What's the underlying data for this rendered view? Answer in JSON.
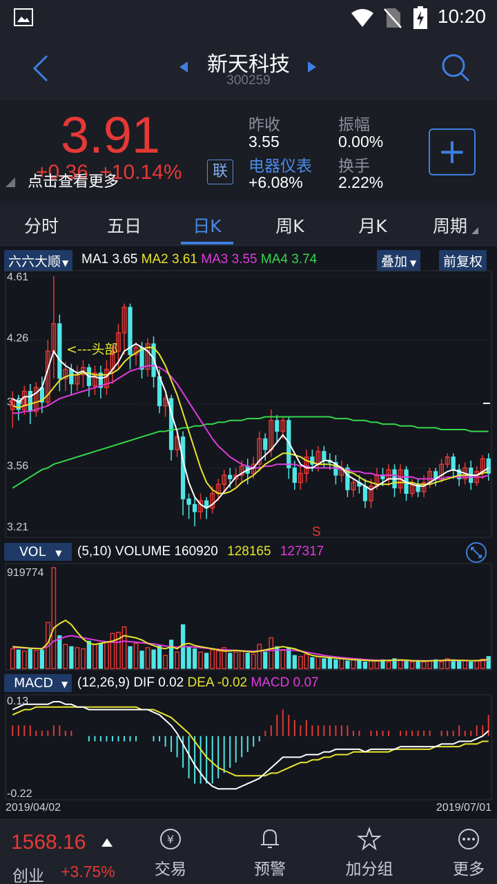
{
  "status": {
    "time": "10:20"
  },
  "header": {
    "name": "新天科技",
    "code": "300259"
  },
  "quote": {
    "price": "3.91",
    "change": "+0.36",
    "change_pct": "+10.14%",
    "hint": "点击查看更多",
    "lian": "联",
    "prev_close_label": "昨收",
    "prev_close": "3.55",
    "amplitude_label": "振幅",
    "amplitude": "0.00%",
    "sector": "电器仪表",
    "sector_pct": "+6.08%",
    "turnover_label": "换手",
    "turnover": "2.22%",
    "add_label": "+"
  },
  "tabs": [
    "分时",
    "五日",
    "日K",
    "周K",
    "月K",
    "周期"
  ],
  "active_tab": 2,
  "kline": {
    "adjust_mode": "六六大顺",
    "ma1_label": "MA1",
    "ma1": "3.65",
    "ma2_label": "MA2",
    "ma2": "3.61",
    "ma3_label": "MA3",
    "ma3": "3.55",
    "ma4_label": "MA4",
    "ma4": "3.74",
    "overlay_btn": "叠加",
    "restore_btn": "前复权",
    "y_ticks": [
      "4.61",
      "4.26",
      "3.91",
      "3.56",
      "3.21"
    ],
    "annotation": "<---头部",
    "signal": "S"
  },
  "volume": {
    "selector": "VOL",
    "params": "(5,10)",
    "volume_label": "VOLUME",
    "v1": "160920",
    "v2": "128165",
    "v3": "127317",
    "max_tick": "919774"
  },
  "macd": {
    "selector": "MACD",
    "params": "(12,26,9)",
    "dif_label": "DIF",
    "dif": "0.02",
    "dea_label": "DEA",
    "dea": "-0.02",
    "macd_label": "MACD",
    "macd": "0.07",
    "top_tick": "0.13",
    "bottom_tick": "-0.22",
    "date_start": "2019/04/02",
    "date_end": "2019/07/01"
  },
  "bottom": {
    "index_value": "1568.16",
    "index_name": "创业",
    "index_pct": "+3.75%",
    "nav": [
      "交易",
      "预警",
      "加分组",
      "更多"
    ]
  },
  "colors": {
    "up": "#e53935",
    "down": "#4ee6e6",
    "ma1": "#ffffff",
    "ma2": "#e6e62e",
    "ma3": "#e23be0",
    "ma4": "#33d94a",
    "accent": "#3e7fe0"
  },
  "chart_data": {
    "type": "candlestick",
    "ylim": [
      3.21,
      4.61
    ],
    "candles": [
      [
        3.88,
        3.93,
        3.78,
        3.98
      ],
      [
        3.93,
        3.88,
        3.82,
        3.96
      ],
      [
        3.88,
        3.98,
        3.85,
        4.01
      ],
      [
        3.98,
        3.87,
        3.8,
        4.02
      ],
      [
        3.87,
        4.0,
        3.84,
        4.03
      ],
      [
        4.0,
        3.92,
        3.86,
        4.06
      ],
      [
        3.92,
        4.2,
        3.9,
        4.26
      ],
      [
        4.2,
        4.35,
        4.05,
        4.61
      ],
      [
        4.35,
        4.05,
        3.98,
        4.4
      ],
      [
        4.05,
        4.1,
        3.98,
        4.14
      ],
      [
        4.1,
        4.02,
        3.96,
        4.13
      ],
      [
        4.02,
        4.07,
        3.98,
        4.12
      ],
      [
        4.07,
        4.11,
        4.0,
        4.15
      ],
      [
        4.11,
        4.01,
        3.95,
        4.13
      ],
      [
        4.01,
        4.08,
        3.96,
        4.12
      ],
      [
        4.08,
        4.0,
        3.94,
        4.12
      ],
      [
        4.0,
        4.1,
        3.96,
        4.15
      ],
      [
        4.1,
        4.2,
        4.02,
        4.23
      ],
      [
        4.2,
        4.3,
        4.1,
        4.35
      ],
      [
        4.3,
        4.44,
        4.18,
        4.46
      ],
      [
        4.44,
        4.18,
        4.1,
        4.46
      ],
      [
        4.18,
        4.22,
        4.12,
        4.25
      ],
      [
        4.22,
        4.1,
        4.05,
        4.25
      ],
      [
        4.1,
        4.24,
        4.06,
        4.27
      ],
      [
        4.24,
        4.06,
        4.0,
        4.28
      ],
      [
        4.06,
        3.9,
        3.86,
        4.1
      ],
      [
        3.9,
        3.94,
        3.84,
        3.96
      ],
      [
        3.94,
        3.66,
        3.6,
        3.96
      ],
      [
        3.66,
        3.73,
        3.62,
        3.76
      ],
      [
        3.73,
        3.39,
        3.3,
        3.76
      ],
      [
        3.39,
        3.36,
        3.28,
        3.42
      ],
      [
        3.36,
        3.32,
        3.24,
        3.4
      ],
      [
        3.32,
        3.38,
        3.28,
        3.42
      ],
      [
        3.38,
        3.34,
        3.28,
        3.4
      ],
      [
        3.34,
        3.42,
        3.31,
        3.46
      ],
      [
        3.42,
        3.47,
        3.38,
        3.5
      ],
      [
        3.47,
        3.52,
        3.43,
        3.55
      ],
      [
        3.52,
        3.5,
        3.45,
        3.56
      ],
      [
        3.5,
        3.52,
        3.46,
        3.56
      ],
      [
        3.52,
        3.57,
        3.48,
        3.6
      ],
      [
        3.57,
        3.53,
        3.47,
        3.61
      ],
      [
        3.53,
        3.58,
        3.5,
        3.62
      ],
      [
        3.58,
        3.72,
        3.54,
        3.76
      ],
      [
        3.72,
        3.66,
        3.6,
        3.75
      ],
      [
        3.66,
        3.82,
        3.62,
        3.88
      ],
      [
        3.82,
        3.76,
        3.7,
        3.85
      ],
      [
        3.76,
        3.82,
        3.72,
        3.84
      ],
      [
        3.82,
        3.56,
        3.5,
        3.84
      ],
      [
        3.56,
        3.48,
        3.44,
        3.6
      ],
      [
        3.48,
        3.53,
        3.44,
        3.57
      ],
      [
        3.53,
        3.62,
        3.48,
        3.66
      ],
      [
        3.62,
        3.58,
        3.54,
        3.66
      ],
      [
        3.58,
        3.65,
        3.54,
        3.68
      ],
      [
        3.65,
        3.6,
        3.56,
        3.68
      ],
      [
        3.6,
        3.59,
        3.55,
        3.64
      ],
      [
        3.59,
        3.52,
        3.47,
        3.63
      ],
      [
        3.52,
        3.56,
        3.48,
        3.6
      ],
      [
        3.56,
        3.44,
        3.4,
        3.58
      ],
      [
        3.44,
        3.48,
        3.4,
        3.5
      ],
      [
        3.48,
        3.46,
        3.42,
        3.52
      ],
      [
        3.46,
        3.38,
        3.34,
        3.5
      ],
      [
        3.38,
        3.46,
        3.34,
        3.5
      ],
      [
        3.46,
        3.52,
        3.44,
        3.56
      ],
      [
        3.52,
        3.5,
        3.46,
        3.56
      ],
      [
        3.5,
        3.55,
        3.46,
        3.58
      ],
      [
        3.55,
        3.45,
        3.4,
        3.58
      ],
      [
        3.45,
        3.55,
        3.42,
        3.58
      ],
      [
        3.55,
        3.42,
        3.38,
        3.57
      ],
      [
        3.42,
        3.47,
        3.4,
        3.5
      ],
      [
        3.47,
        3.43,
        3.4,
        3.5
      ],
      [
        3.43,
        3.48,
        3.4,
        3.52
      ],
      [
        3.48,
        3.54,
        3.45,
        3.56
      ],
      [
        3.54,
        3.5,
        3.46,
        3.56
      ],
      [
        3.5,
        3.58,
        3.48,
        3.61
      ],
      [
        3.58,
        3.62,
        3.56,
        3.64
      ],
      [
        3.62,
        3.55,
        3.5,
        3.64
      ],
      [
        3.55,
        3.5,
        3.46,
        3.58
      ],
      [
        3.5,
        3.56,
        3.47,
        3.59
      ],
      [
        3.56,
        3.48,
        3.44,
        3.6
      ],
      [
        3.48,
        3.54,
        3.46,
        3.57
      ],
      [
        3.54,
        3.61,
        3.5,
        3.63
      ],
      [
        3.61,
        3.53,
        3.49,
        3.64
      ]
    ],
    "ma1": [
      3.94,
      3.92,
      3.95,
      3.95,
      3.97,
      4.0,
      4.1,
      4.2,
      4.15,
      4.12,
      4.1,
      4.08,
      4.09,
      4.06,
      4.06,
      4.05,
      4.06,
      4.1,
      4.14,
      4.2,
      4.22,
      4.24,
      4.22,
      4.2,
      4.16,
      4.06,
      3.98,
      3.86,
      3.76,
      3.6,
      3.48,
      3.4,
      3.36,
      3.34,
      3.36,
      3.39,
      3.43,
      3.47,
      3.51,
      3.53,
      3.55,
      3.56,
      3.6,
      3.63,
      3.66,
      3.7,
      3.74,
      3.7,
      3.64,
      3.58,
      3.56,
      3.56,
      3.58,
      3.6,
      3.6,
      3.58,
      3.56,
      3.52,
      3.5,
      3.48,
      3.46,
      3.44,
      3.46,
      3.48,
      3.5,
      3.5,
      3.5,
      3.48,
      3.47,
      3.46,
      3.46,
      3.48,
      3.5,
      3.52,
      3.54,
      3.55,
      3.54,
      3.53,
      3.52,
      3.52,
      3.54,
      3.56
    ],
    "ma2": [
      3.9,
      3.89,
      3.9,
      3.91,
      3.92,
      3.93,
      3.96,
      4.0,
      4.04,
      4.06,
      4.07,
      4.07,
      4.08,
      4.08,
      4.07,
      4.07,
      4.07,
      4.08,
      4.1,
      4.14,
      4.17,
      4.19,
      4.21,
      4.22,
      4.22,
      4.18,
      4.12,
      4.04,
      3.96,
      3.86,
      3.76,
      3.66,
      3.56,
      3.48,
      3.44,
      3.42,
      3.42,
      3.43,
      3.45,
      3.48,
      3.5,
      3.52,
      3.55,
      3.58,
      3.6,
      3.62,
      3.64,
      3.64,
      3.63,
      3.62,
      3.6,
      3.59,
      3.58,
      3.58,
      3.58,
      3.57,
      3.56,
      3.54,
      3.53,
      3.51,
      3.49,
      3.48,
      3.47,
      3.47,
      3.47,
      3.48,
      3.48,
      3.48,
      3.48,
      3.47,
      3.47,
      3.47,
      3.48,
      3.49,
      3.5,
      3.51,
      3.52,
      3.52,
      3.52,
      3.52,
      3.53,
      3.54
    ],
    "ma3": [
      3.86,
      3.86,
      3.87,
      3.87,
      3.88,
      3.89,
      3.9,
      3.92,
      3.94,
      3.95,
      3.96,
      3.97,
      3.98,
      3.99,
      4.0,
      4.01,
      4.02,
      4.03,
      4.05,
      4.07,
      4.09,
      4.1,
      4.11,
      4.12,
      4.12,
      4.11,
      4.09,
      4.06,
      4.02,
      3.97,
      3.92,
      3.87,
      3.82,
      3.77,
      3.72,
      3.68,
      3.65,
      3.62,
      3.6,
      3.58,
      3.57,
      3.56,
      3.56,
      3.57,
      3.57,
      3.58,
      3.58,
      3.58,
      3.58,
      3.57,
      3.57,
      3.56,
      3.56,
      3.56,
      3.56,
      3.56,
      3.55,
      3.55,
      3.54,
      3.54,
      3.53,
      3.53,
      3.52,
      3.52,
      3.52,
      3.52,
      3.51,
      3.51,
      3.51,
      3.5,
      3.5,
      3.5,
      3.5,
      3.5,
      3.51,
      3.51,
      3.51,
      3.51,
      3.51,
      3.51,
      3.51,
      3.52
    ],
    "ma4": [
      3.45,
      3.47,
      3.49,
      3.51,
      3.53,
      3.55,
      3.56,
      3.58,
      3.59,
      3.6,
      3.61,
      3.62,
      3.63,
      3.64,
      3.65,
      3.66,
      3.67,
      3.68,
      3.69,
      3.7,
      3.71,
      3.72,
      3.73,
      3.74,
      3.75,
      3.76,
      3.76,
      3.77,
      3.77,
      3.78,
      3.78,
      3.79,
      3.79,
      3.8,
      3.8,
      3.81,
      3.81,
      3.82,
      3.82,
      3.82,
      3.83,
      3.83,
      3.83,
      3.84,
      3.84,
      3.84,
      3.84,
      3.84,
      3.84,
      3.84,
      3.84,
      3.84,
      3.84,
      3.84,
      3.84,
      3.83,
      3.83,
      3.83,
      3.82,
      3.82,
      3.82,
      3.81,
      3.81,
      3.8,
      3.8,
      3.8,
      3.79,
      3.79,
      3.79,
      3.78,
      3.78,
      3.78,
      3.78,
      3.77,
      3.77,
      3.77,
      3.77,
      3.77,
      3.76,
      3.76,
      3.76,
      3.76
    ],
    "volume_scale": 919774,
    "volumes": [
      180000,
      170000,
      160000,
      175000,
      165000,
      170000,
      420000,
      919774,
      300000,
      220000,
      200000,
      190000,
      180000,
      250000,
      220000,
      230000,
      240000,
      320000,
      330000,
      380000,
      200000,
      230000,
      160000,
      190000,
      170000,
      210000,
      120000,
      260000,
      150000,
      400000,
      200000,
      180000,
      150000,
      140000,
      170000,
      160000,
      190000,
      140000,
      150000,
      160000,
      140000,
      130000,
      220000,
      150000,
      280000,
      200000,
      170000,
      190000,
      120000,
      110000,
      130000,
      100000,
      110000,
      90000,
      100000,
      80000,
      90000,
      70000,
      80000,
      70000,
      60000,
      80000,
      70000,
      80000,
      60000,
      90000,
      80000,
      70000,
      60000,
      65000,
      60000,
      70000,
      80000,
      60000,
      90000,
      80000,
      65000,
      70000,
      60000,
      75000,
      85000,
      110000
    ],
    "vol_ma5": [
      200000,
      195000,
      190000,
      185000,
      182000,
      180000,
      230000,
      370000,
      410000,
      440000,
      400000,
      330000,
      270000,
      230000,
      220000,
      230000,
      240000,
      250000,
      270000,
      300000,
      290000,
      280000,
      260000,
      230000,
      210000,
      190000,
      180000,
      200000,
      180000,
      220000,
      230000,
      210000,
      200000,
      190000,
      180000,
      170000,
      160000,
      160000,
      165000,
      160000,
      155000,
      150000,
      160000,
      170000,
      180000,
      190000,
      200000,
      190000,
      180000,
      160000,
      140000,
      120000,
      110000,
      105000,
      100000,
      95000,
      90000,
      85000,
      80000,
      78000,
      75000,
      72000,
      70000,
      72000,
      75000,
      76000,
      78000,
      76000,
      72000,
      70000,
      68000,
      70000,
      72000,
      74000,
      76000,
      76000,
      75000,
      74000,
      72000,
      72000,
      76000,
      82000
    ],
    "vol_ma10": [
      190000,
      190000,
      188000,
      186000,
      184000,
      182000,
      200000,
      250000,
      270000,
      290000,
      300000,
      290000,
      280000,
      270000,
      260000,
      250000,
      245000,
      240000,
      240000,
      250000,
      245000,
      240000,
      235000,
      230000,
      225000,
      215000,
      205000,
      200000,
      195000,
      200000,
      200000,
      195000,
      190000,
      185000,
      180000,
      175000,
      170000,
      168000,
      165000,
      162000,
      160000,
      158000,
      160000,
      162000,
      165000,
      168000,
      170000,
      168000,
      165000,
      160000,
      150000,
      140000,
      130000,
      120000,
      112000,
      105000,
      100000,
      95000,
      90000,
      86000,
      82000,
      78000,
      76000,
      74000,
      74000,
      74000,
      74000,
      73000,
      72000,
      72000,
      71000,
      71000,
      71000,
      72000,
      73000,
      73000,
      73000,
      73000,
      72000,
      72000,
      73000,
      75000
    ],
    "macd_range": [
      -0.22,
      0.13
    ],
    "dif": [
      0.1,
      0.11,
      0.12,
      0.12,
      0.12,
      0.12,
      0.12,
      0.13,
      0.13,
      0.12,
      0.12,
      0.11,
      0.11,
      0.1,
      0.1,
      0.1,
      0.1,
      0.1,
      0.1,
      0.1,
      0.1,
      0.1,
      0.1,
      0.1,
      0.09,
      0.08,
      0.06,
      0.04,
      0.01,
      -0.03,
      -0.07,
      -0.11,
      -0.14,
      -0.17,
      -0.19,
      -0.2,
      -0.2,
      -0.2,
      -0.2,
      -0.19,
      -0.18,
      -0.17,
      -0.16,
      -0.14,
      -0.12,
      -0.1,
      -0.08,
      -0.08,
      -0.08,
      -0.08,
      -0.07,
      -0.07,
      -0.07,
      -0.06,
      -0.06,
      -0.05,
      -0.05,
      -0.05,
      -0.05,
      -0.05,
      -0.06,
      -0.05,
      -0.05,
      -0.05,
      -0.05,
      -0.05,
      -0.04,
      -0.04,
      -0.04,
      -0.04,
      -0.04,
      -0.04,
      -0.04,
      -0.03,
      -0.03,
      -0.03,
      -0.02,
      -0.02,
      -0.02,
      -0.01,
      0.0,
      0.02
    ],
    "dea": [
      0.08,
      0.09,
      0.1,
      0.1,
      0.11,
      0.11,
      0.11,
      0.11,
      0.11,
      0.11,
      0.11,
      0.11,
      0.11,
      0.11,
      0.11,
      0.11,
      0.11,
      0.11,
      0.11,
      0.11,
      0.11,
      0.11,
      0.1,
      0.1,
      0.1,
      0.09,
      0.08,
      0.07,
      0.05,
      0.03,
      0.01,
      -0.02,
      -0.05,
      -0.08,
      -0.1,
      -0.12,
      -0.13,
      -0.14,
      -0.15,
      -0.15,
      -0.15,
      -0.15,
      -0.15,
      -0.15,
      -0.14,
      -0.14,
      -0.13,
      -0.12,
      -0.11,
      -0.1,
      -0.1,
      -0.09,
      -0.09,
      -0.08,
      -0.08,
      -0.07,
      -0.07,
      -0.07,
      -0.06,
      -0.06,
      -0.06,
      -0.06,
      -0.06,
      -0.06,
      -0.06,
      -0.05,
      -0.05,
      -0.05,
      -0.05,
      -0.05,
      -0.05,
      -0.05,
      -0.04,
      -0.04,
      -0.04,
      -0.04,
      -0.04,
      -0.03,
      -0.03,
      -0.03,
      -0.02,
      -0.02
    ]
  }
}
